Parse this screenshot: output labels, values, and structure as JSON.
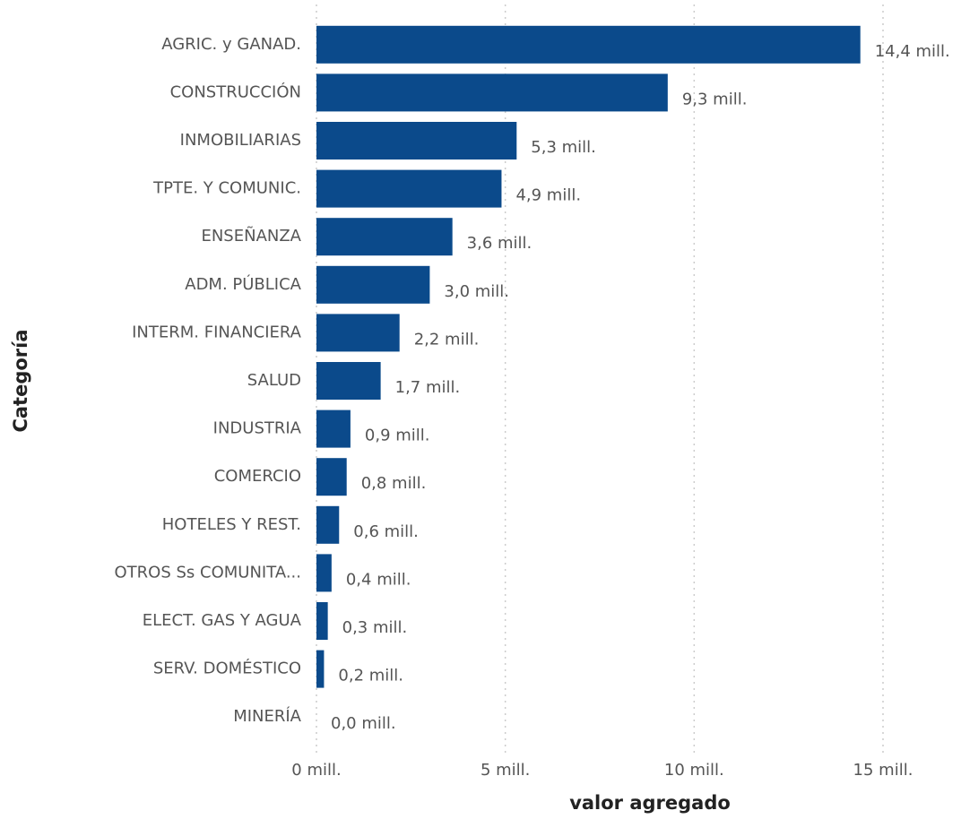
{
  "chart_data": {
    "type": "bar",
    "orientation": "horizontal",
    "xlabel": "valor agregado",
    "ylabel": "Categoría",
    "categories": [
      "AGRIC. y GANAD.",
      "CONSTRUCCIÓN",
      "INMOBILIARIAS",
      "TPTE. Y COMUNIC.",
      "ENSEÑANZA",
      "ADM. PÚBLICA",
      "INTERM. FINANCIERA",
      "SALUD",
      "INDUSTRIA",
      "COMERCIO",
      "HOTELES Y REST.",
      "OTROS Ss COMUNITA...",
      "ELECT. GAS Y AGUA",
      "SERV. DOMÉSTICO",
      "MINERÍA"
    ],
    "values": [
      14.4,
      9.3,
      5.3,
      4.9,
      3.6,
      3.0,
      2.2,
      1.7,
      0.9,
      0.8,
      0.6,
      0.4,
      0.3,
      0.2,
      0.0
    ],
    "value_labels": [
      "14,4 mill.",
      "9,3 mill.",
      "5,3 mill.",
      "4,9 mill.",
      "3,6 mill.",
      "3,0 mill.",
      "2,2 mill.",
      "1,7 mill.",
      "0,9 mill.",
      "0,8 mill.",
      "0,6 mill.",
      "0,4 mill.",
      "0,3 mill.",
      "0,2 mill.",
      "0,0 mill."
    ],
    "color": "#0b4a8b",
    "xlim": [
      0,
      15
    ],
    "xticks": [
      {
        "value": 0,
        "label": "0 mill."
      },
      {
        "value": 5,
        "label": "5 mill."
      },
      {
        "value": 10,
        "label": "10 mill."
      },
      {
        "value": 15,
        "label": "15 mill."
      }
    ],
    "grid": true
  }
}
